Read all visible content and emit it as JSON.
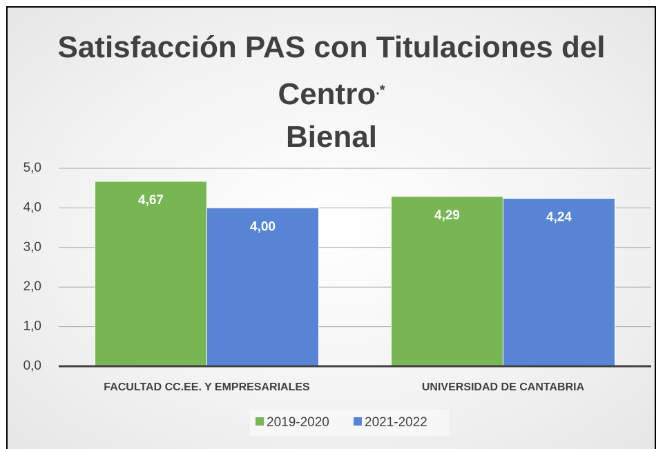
{
  "chart_data": {
    "type": "bar",
    "title": "Satisfacción PAS con Titulaciones del Centro",
    "title_note": ".*",
    "subtitle": "Bienal",
    "categories": [
      "FACULTAD CC.EE. Y EMPRESARIALES",
      "UNIVERSIDAD DE CANTABRIA"
    ],
    "series": [
      {
        "name": "2019-2020",
        "color": "#77b653",
        "values": [
          4.67,
          4.29
        ],
        "value_labels": [
          "4,67",
          "4,29"
        ]
      },
      {
        "name": "2021-2022",
        "color": "#5784d4",
        "values": [
          4.0,
          4.24
        ],
        "value_labels": [
          "4,00",
          "4,24"
        ]
      }
    ],
    "ylim": [
      0,
      5
    ],
    "yticks": [
      {
        "value": 0,
        "label": "0,0"
      },
      {
        "value": 1,
        "label": "1,0"
      },
      {
        "value": 2,
        "label": "2,0"
      },
      {
        "value": 3,
        "label": "3,0"
      },
      {
        "value": 4,
        "label": "4,0"
      },
      {
        "value": 5,
        "label": "5,0"
      }
    ],
    "grid": true,
    "legend": "bottom"
  }
}
